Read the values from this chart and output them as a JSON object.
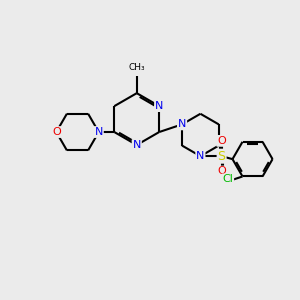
{
  "bg_color": "#ebebeb",
  "bond_color": "#000000",
  "N_color": "#0000ee",
  "O_color": "#ee0000",
  "S_color": "#cccc00",
  "Cl_color": "#00bb00",
  "line_width": 1.5,
  "dbo": 0.06,
  "xlim": [
    0,
    10
  ],
  "ylim": [
    0,
    10
  ]
}
